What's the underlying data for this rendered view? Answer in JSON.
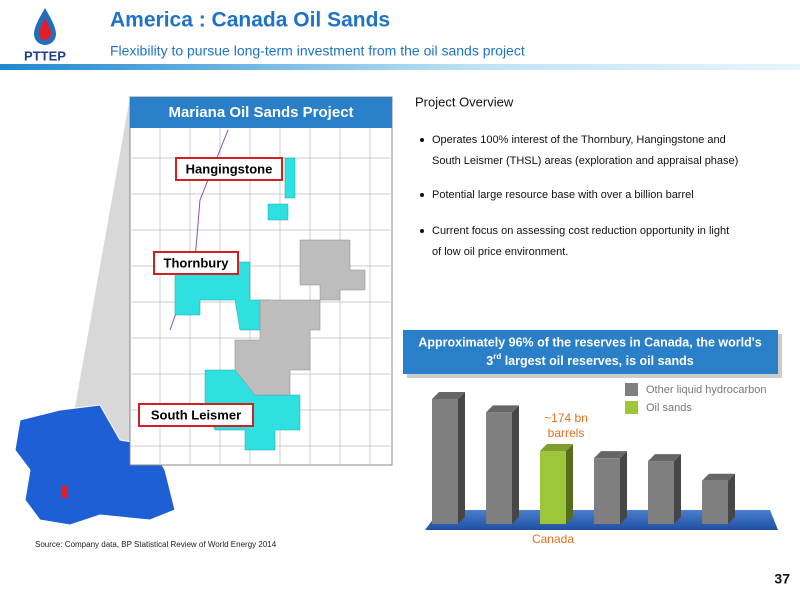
{
  "header": {
    "logo": "PTTEP",
    "title": "America : Canada Oil Sands",
    "subtitle": "Flexibility to pursue long-term investment from the oil sands project"
  },
  "map": {
    "title": "Mariana Oil Sands Project",
    "labels": [
      "Hangingstone",
      "Thornbury",
      "South Leismer"
    ]
  },
  "overview": {
    "title": "Project Overview",
    "bullets": [
      [
        "Operates 100% interest of the Thornbury, Hangingstone and",
        "South Leismer (THSL) areas (exploration and appraisal phase)"
      ],
      [
        "Potential large resource base with over a billion barrel"
      ],
      [
        "Current focus on assessing cost reduction opportunity in light",
        "of low oil price environment."
      ]
    ]
  },
  "callout": {
    "line1": "Approximately 96% of the reserves in Canada, the world's",
    "line2_pre": "3",
    "line2_sup": "rd",
    "line2_post": " largest oil reserves, is oil sands"
  },
  "chart_data": {
    "type": "bar",
    "categories": [
      null,
      null,
      "Canada",
      null,
      null,
      null
    ],
    "series": [
      {
        "name": "Other liquid hydrocarbon",
        "color": "#7f7f7f",
        "values": [
          298,
          266,
          null,
          157,
          150,
          103
        ]
      },
      {
        "name": "Oil sands",
        "color": "#9dc63b",
        "values": [
          null,
          null,
          174,
          null,
          null,
          null
        ]
      }
    ],
    "annotation": [
      "~174 bn",
      "barrels"
    ]
  },
  "source": "Source: Company data, BP Statistical Review of World Energy 2014",
  "page_number": "37"
}
